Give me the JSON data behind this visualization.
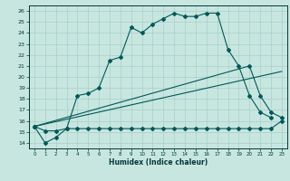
{
  "xlabel": "Humidex (Indice chaleur)",
  "xlim": [
    -0.5,
    23.5
  ],
  "ylim": [
    13.5,
    26.5
  ],
  "yticks": [
    14,
    15,
    16,
    17,
    18,
    19,
    20,
    21,
    22,
    23,
    24,
    25,
    26
  ],
  "xticks": [
    0,
    1,
    2,
    3,
    4,
    5,
    6,
    7,
    8,
    9,
    10,
    11,
    12,
    13,
    14,
    15,
    16,
    17,
    18,
    19,
    20,
    21,
    22,
    23
  ],
  "bg_color": "#c8e6e0",
  "grid_color": "#a8d0c8",
  "line_color": "#005858",
  "line1_x": [
    0,
    1,
    2,
    3,
    4,
    5,
    6,
    7,
    8,
    9,
    10,
    11,
    12,
    13,
    14,
    15,
    16,
    17,
    18,
    19,
    20,
    21,
    22
  ],
  "line1_y": [
    15.5,
    14.0,
    14.5,
    15.3,
    18.3,
    18.5,
    19.0,
    21.5,
    21.8,
    24.5,
    24.0,
    24.8,
    25.3,
    25.8,
    25.5,
    25.5,
    25.8,
    25.8,
    22.5,
    21.0,
    18.3,
    16.8,
    16.3
  ],
  "line2_x": [
    0,
    1,
    2,
    3,
    4,
    5,
    6,
    7,
    8,
    9,
    10,
    11,
    12,
    13,
    14,
    15,
    16,
    17,
    18,
    19,
    20,
    21,
    22,
    23
  ],
  "line2_y": [
    15.5,
    15.1,
    15.1,
    15.3,
    15.3,
    15.3,
    15.3,
    15.3,
    15.3,
    15.3,
    15.3,
    15.3,
    15.3,
    15.3,
    15.3,
    15.3,
    15.3,
    15.3,
    15.3,
    15.3,
    15.3,
    15.3,
    15.3,
    16.0
  ],
  "line3_x": [
    0,
    23
  ],
  "line3_y": [
    15.5,
    20.5
  ],
  "line4_x": [
    0,
    20,
    21,
    22,
    23
  ],
  "line4_y": [
    15.5,
    21.0,
    18.3,
    16.8,
    16.3
  ],
  "font_color": "#003838",
  "marker": "D",
  "marker_size": 2.0
}
